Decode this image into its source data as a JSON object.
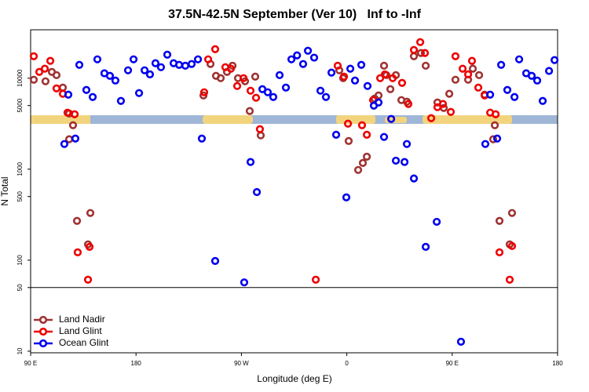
{
  "chart_data": {
    "type": "scatter",
    "title": "37.5N-42.5N September (Ver 10)   Inf to -Inf",
    "x_label": "Longitude (deg E)",
    "y_label": "N Total",
    "xlim": [
      90,
      540
    ],
    "ylim": [
      9.6,
      34000
    ],
    "log_y": true,
    "hline": 50,
    "legend": "bottom-left",
    "xticks": [
      {
        "value": 90,
        "label": "90 E"
      },
      180,
      {
        "value": 270,
        "label": "90 W"
      },
      {
        "value": 360,
        "label": "0"
      },
      {
        "value": 450,
        "label": "90 E"
      },
      {
        "value": 540,
        "label": "180"
      }
    ],
    "yticks": [
      10,
      50,
      100,
      500,
      1000,
      5000,
      10000
    ],
    "series": [
      {
        "name": "Land Nadir",
        "color": "#a03232",
        "x": [
          92.7,
          102.7,
          108.1,
          112.1,
          117.5,
          122.9,
          126.2,
          122.9,
          129.6,
          139,
          141,
          237.6,
          243.6,
          248.3,
          252.3,
          257.7,
          262.4,
          267.1,
          273.1,
          277.1,
          281.8,
          286.5,
          353.6,
          356.9,
          361.6,
          369.7,
          373.7,
          377.1,
          383.8,
          387.1,
          391.8,
          393.8,
          397.2,
          401.9,
          406.6,
          411.3,
          417.3,
          423.3,
          427.4,
          437.4,
          442.8,
          447.5,
          452.8,
          463.6,
          467.6,
          473,
          477.7,
          485,
          486.4,
          490.4,
          499.1,
          501.1
        ],
        "values": [
          9610,
          9240,
          11700,
          10800,
          7880,
          4090,
          3040,
          2130,
          270,
          149,
          330,
          6460,
          14300,
          10600,
          10000,
          11700,
          13700,
          10000,
          9240,
          4350,
          10400,
          2350,
          12200,
          10000,
          2040,
          980,
          1170,
          1370,
          5970,
          6460,
          13700,
          10800,
          7570,
          10800,
          5740,
          5510,
          17400,
          18900,
          13700,
          5400,
          4700,
          6730,
          9610,
          9610,
          12700,
          10800,
          6590,
          2130,
          3040,
          270,
          149,
          330
        ]
      },
      {
        "name": "Land Glint",
        "color": "#ee0000",
        "x": [
          92.7,
          97.4,
          102.1,
          106.8,
          112.1,
          117.5,
          121.5,
          127.6,
          130.2,
          139,
          140.3,
          238.2,
          241.6,
          247.6,
          256.3,
          261,
          266.4,
          271.8,
          277.8,
          282.5,
          285.8,
          333.5,
          352.2,
          357.6,
          361,
          373,
          377.1,
          382.4,
          388.5,
          392.5,
          399.2,
          407.2,
          412.6,
          417.3,
          422.7,
          426.7,
          432.1,
          437.4,
          442.1,
          448.8,
          452.8,
          458.9,
          463.6,
          466.9,
          472.3,
          477.7,
          482.4,
          487.1,
          490.4,
          499.1,
          501.1
        ],
        "values": [
          17400,
          11700,
          12700,
          15500,
          7720,
          6730,
          4180,
          4010,
          122,
          61,
          140,
          7000,
          16100,
          20800,
          13200,
          12700,
          8200,
          10000,
          7280,
          6090,
          2750,
          61,
          13700,
          10400,
          3160,
          3040,
          2390,
          5740,
          10000,
          11000,
          10000,
          8870,
          5200,
          20400,
          24900,
          18900,
          3630,
          4800,
          5200,
          4260,
          17400,
          12700,
          11000,
          15500,
          7880,
          6460,
          4180,
          4010,
          122,
          61,
          143
        ]
      },
      {
        "name": "Ocean Glint",
        "color": "#0000ee",
        "x": [
          118.8,
          122.2,
          128.2,
          131.6,
          137.6,
          143,
          147,
          153,
          157.7,
          162.4,
          167.1,
          173.2,
          177.9,
          182.6,
          187.3,
          191.9,
          196.6,
          201.3,
          206.7,
          212.1,
          216.8,
          222.1,
          227.5,
          232.9,
          236.2,
          247.6,
          272.4,
          277.8,
          283.2,
          287.9,
          292.5,
          297.2,
          302.6,
          308,
          312.7,
          317.5,
          322.7,
          326.8,
          332.1,
          337.5,
          342.2,
          346.9,
          350.9,
          359.6,
          363,
          367,
          372.4,
          377.7,
          383.1,
          387.1,
          391.8,
          397.9,
          401.9,
          409.3,
          411.3,
          417.3,
          427.4,
          436.8,
          457.5,
          478.3,
          482.4,
          488.4,
          491.8,
          497.1,
          503.2,
          507.2,
          513.2,
          517.9,
          522.6,
          527.3,
          532.7,
          537.4
        ],
        "values": [
          1890,
          6590,
          2170,
          14000,
          7420,
          6210,
          16100,
          11300,
          10600,
          9420,
          5620,
          12200,
          16100,
          6860,
          12200,
          11000,
          14600,
          13200,
          18100,
          14600,
          14000,
          13700,
          14300,
          16100,
          2170,
          98,
          57,
          1200,
          560,
          7570,
          7000,
          6210,
          10800,
          7880,
          16100,
          17800,
          14300,
          20000,
          16800,
          7280,
          6210,
          11500,
          2390,
          490,
          12700,
          9420,
          14000,
          8200,
          4990,
          5400,
          2260,
          3560,
          1240,
          1200,
          1890,
          790,
          140,
          264,
          12.7,
          1890,
          6590,
          2170,
          14000,
          7420,
          6210,
          16100,
          11300,
          10600,
          9420,
          5620,
          12000,
          15800
        ]
      }
    ]
  }
}
